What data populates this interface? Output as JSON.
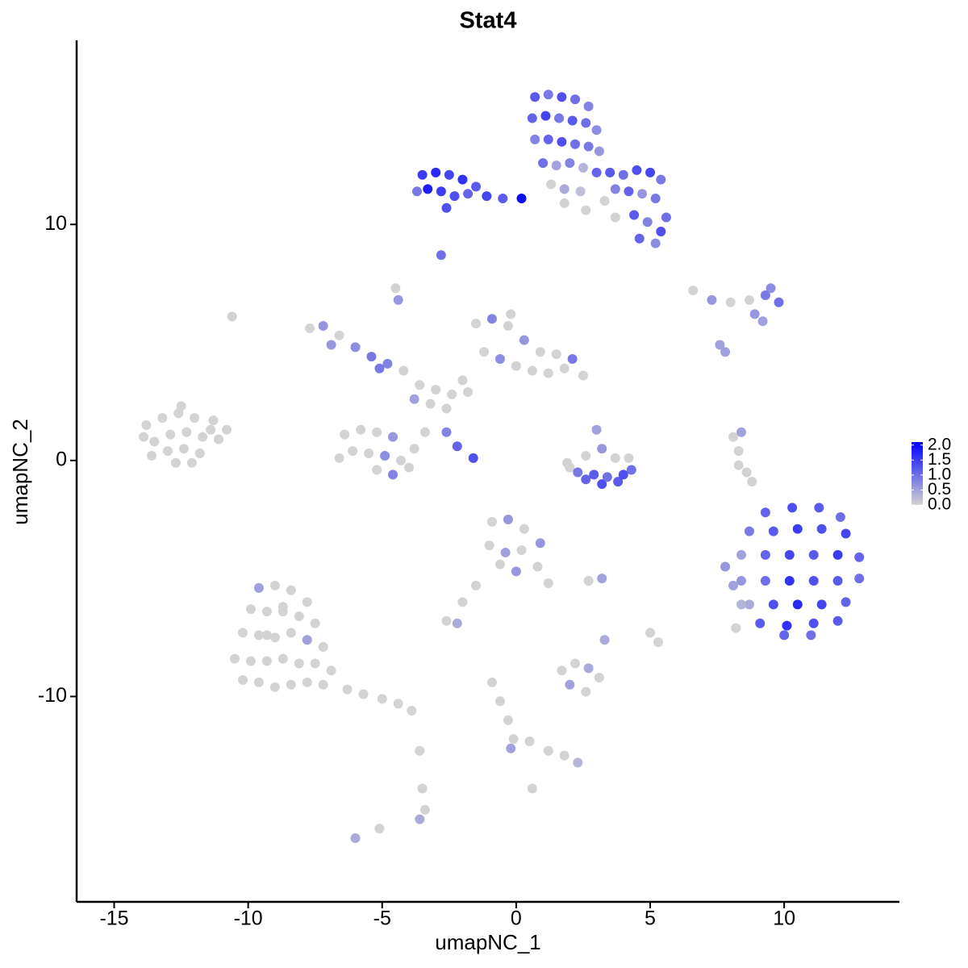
{
  "chart_data": {
    "type": "scatter",
    "title": "Stat4",
    "x_label": "umapNC_1",
    "y_label": "umapNC_2",
    "xlim": [
      -16.4,
      14.3
    ],
    "ylim": [
      -18.7,
      17.8
    ],
    "xticks": [
      -15,
      -10,
      -5,
      0,
      5,
      10
    ],
    "yticks": [
      -10,
      0,
      10
    ],
    "color_low": "#d3d3d3",
    "color_high": "#0000ff",
    "color_lim": [
      0,
      2.1
    ],
    "color_ticks": [
      {
        "value": 0,
        "label": "0.0"
      },
      {
        "value": 0.5,
        "label": "0.5"
      },
      {
        "value": 1,
        "label": "1.0"
      },
      {
        "value": 1.5,
        "label": "1.5"
      },
      {
        "value": 2,
        "label": "2.0"
      }
    ],
    "x": [
      -13.8,
      -13.2,
      -12.6,
      -12,
      -11.4,
      -13.5,
      -12.9,
      -12.3,
      -11.7,
      -11.1,
      -13.6,
      -13,
      -12.4,
      -11.8,
      -12.7,
      -12.1,
      -11.3,
      -10.8,
      -13.9,
      -12.5,
      -9.6,
      -9,
      -8.4,
      -7.8,
      -9.9,
      -9.3,
      -8.7,
      -8.1,
      -7.5,
      -10.2,
      -9.6,
      -9,
      -8.4,
      -7.8,
      -7.2,
      -10.5,
      -9.9,
      -9.3,
      -8.7,
      -8.1,
      -7.5,
      -6.9,
      -10.2,
      -9.6,
      -9,
      -8.4,
      -7.8,
      -7.2,
      -6.3,
      -5.7,
      -5,
      -4.4,
      -3.9,
      -3.6,
      -3.5,
      -3.4,
      -3.6,
      -8.7,
      -9.3,
      -6.4,
      -5.8,
      -5.2,
      -4.6,
      -6.1,
      -5.5,
      -4.9,
      -4.3,
      -3.8,
      -5.2,
      -4.6,
      -4,
      -6.6,
      -3.4,
      -7.7,
      -7.2,
      -6.6,
      -6,
      -5.4,
      -4.8,
      -4.2,
      -6.9,
      -5.1,
      -3.6,
      -3,
      -2.4,
      -3.2,
      -2.6,
      -2,
      -3.8,
      -1.8,
      -1.5,
      -0.9,
      -0.3,
      0.3,
      0.9,
      1.5,
      2.1,
      2.5,
      -1.2,
      -0.6,
      0,
      0.6,
      1.2,
      1.8,
      -0.2,
      -2.6,
      -2.2,
      -1.6,
      -4.5,
      -4.4,
      0.7,
      1.2,
      1.7,
      2.2,
      2.7,
      0.6,
      1.1,
      1.6,
      2.1,
      2.6,
      3,
      0.7,
      1.2,
      1.7,
      2.2,
      2.7,
      3.1,
      1,
      1.5,
      2,
      2.5,
      3,
      1.3,
      1.8,
      2.4,
      -3.5,
      -3,
      -2.5,
      -2,
      -1.5,
      -3.3,
      -2.8,
      -2.3,
      -1.8,
      -1.1,
      -0.5,
      0.2,
      -3.7,
      -2.6,
      3.5,
      4,
      4.5,
      5,
      5.4,
      3.7,
      4.2,
      4.7,
      5.2,
      5.6,
      4.4,
      4.9,
      5.4,
      4.6,
      5.2,
      1.8,
      2.6,
      3.3,
      3.7,
      -2.8,
      9.3,
      10.3,
      11.3,
      12.1,
      8.7,
      9.6,
      10.5,
      11.4,
      12.3,
      8.4,
      9.3,
      10.2,
      11.1,
      12,
      12.8,
      8.4,
      9.3,
      10.2,
      11.1,
      12,
      12.8,
      8.7,
      9.6,
      10.5,
      11.4,
      12.3,
      9.1,
      10.1,
      11.1,
      12,
      10,
      11,
      7.8,
      8.1,
      8.4,
      8.2,
      2,
      2.6,
      3.2,
      3.8,
      4.3,
      2.6,
      3.2,
      3.7,
      2.3,
      2.9,
      3.4,
      4,
      1.9,
      3,
      4.2,
      -0.9,
      -0.3,
      0.3,
      0.9,
      -1,
      -0.4,
      0.2,
      0.8,
      1.2,
      -0.6,
      0,
      -1.5,
      -2,
      -2.6,
      -2.2,
      2.7,
      3.2,
      1.7,
      2.2,
      2.7,
      3.1,
      2,
      2.6,
      -0.9,
      -0.6,
      -0.3,
      -0.1,
      0.5,
      1.2,
      1.8,
      2.3,
      -0.2,
      0.6,
      5,
      5.3,
      3.3,
      6.6,
      7.3,
      8,
      8.7,
      9.3,
      9.8,
      9.5,
      8.9,
      9.2,
      7.6,
      7.8,
      8.1,
      8.3,
      8.6,
      8.8,
      8.3,
      8.4,
      -10.6,
      -6,
      -5.1
    ],
    "y": [
      1.5,
      1.8,
      2,
      1.8,
      1.3,
      0.8,
      1.1,
      1.2,
      1,
      0.9,
      0.2,
      0.4,
      0.5,
      0.3,
      -0.1,
      -0.1,
      1.7,
      1.3,
      1,
      2.3,
      -5.4,
      -5.3,
      -5.5,
      -6,
      -6.3,
      -6.4,
      -6.4,
      -6.6,
      -6.9,
      -7.3,
      -7.4,
      -7.5,
      -7.3,
      -7.6,
      -7.9,
      -8.4,
      -8.5,
      -8.5,
      -8.4,
      -8.6,
      -8.6,
      -8.9,
      -9.3,
      -9.4,
      -9.6,
      -9.5,
      -9.4,
      -9.5,
      -9.7,
      -9.9,
      -10.1,
      -10.3,
      -10.6,
      -12.3,
      -13.9,
      -14.8,
      -15.2,
      -6.2,
      -7.4,
      1.1,
      1.3,
      1.2,
      1,
      0.4,
      0.3,
      0.2,
      0,
      0.5,
      -0.4,
      -0.6,
      -0.3,
      0.1,
      1.2,
      5.6,
      5.7,
      5.3,
      4.8,
      4.4,
      4.1,
      3.8,
      4.9,
      3.9,
      3.2,
      3,
      2.8,
      2.4,
      2.2,
      3.4,
      2.6,
      2.9,
      5.8,
      6,
      5.7,
      5.1,
      4.6,
      4.5,
      4.3,
      3.6,
      4.6,
      4.3,
      4,
      3.8,
      3.7,
      3.9,
      6.2,
      1.2,
      0.6,
      0.1,
      7.3,
      6.8,
      15.4,
      15.5,
      15.4,
      15.3,
      15,
      14.5,
      14.6,
      14.5,
      14.4,
      14.3,
      14,
      13.6,
      13.6,
      13.5,
      13.4,
      13.3,
      13.1,
      12.6,
      12.5,
      12.6,
      12.4,
      12.2,
      11.7,
      11.5,
      11.4,
      12.1,
      12.2,
      12.1,
      11.9,
      11.6,
      11.5,
      11.4,
      11.2,
      11.3,
      11.2,
      11.1,
      11.1,
      11.4,
      10.7,
      12.2,
      12.1,
      12.3,
      12.2,
      11.9,
      11.5,
      11.4,
      11.3,
      11.1,
      10.3,
      10.4,
      10.1,
      9.7,
      9.4,
      9.2,
      10.9,
      10.6,
      11,
      10.3,
      8.7,
      -2.2,
      -2,
      -2,
      -2.4,
      -3,
      -3,
      -2.9,
      -2.9,
      -3.1,
      -4,
      -4,
      -4,
      -4,
      -4,
      -4.1,
      -5.1,
      -5.1,
      -5.1,
      -5.1,
      -5.1,
      -5,
      -6.1,
      -6.1,
      -6.1,
      -6.1,
      -6,
      -6.9,
      -7,
      -6.9,
      -6.8,
      -7.4,
      -7.4,
      -4.5,
      -5.3,
      -6.1,
      -7.1,
      -0.3,
      -0.8,
      -1,
      -0.9,
      -0.4,
      0.2,
      0.5,
      0.1,
      -0.5,
      -0.6,
      -0.7,
      -0.6,
      -0.1,
      1.3,
      0.1,
      -2.6,
      -2.5,
      -2.9,
      -3.5,
      -3.6,
      -3.9,
      -3.8,
      -4.5,
      -5.2,
      -4.4,
      -4.7,
      -5.3,
      -6,
      -6.8,
      -6.9,
      -5.1,
      -5,
      -8.9,
      -8.6,
      -8.8,
      -9.2,
      -9.5,
      -9.8,
      -9.4,
      -10.2,
      -11,
      -11.8,
      -11.9,
      -12.3,
      -12.5,
      -12.8,
      -12.2,
      -13.9,
      -7.3,
      -7.7,
      -7.6,
      7.2,
      6.8,
      6.7,
      6.8,
      7,
      6.7,
      7.3,
      6.2,
      5.9,
      4.9,
      4.6,
      1,
      0.4,
      -0.5,
      -0.9,
      -0.2,
      1.2,
      6.1,
      -16,
      -15.6
    ],
    "values": [
      0,
      0,
      0,
      0,
      0,
      0,
      0,
      0,
      0,
      0,
      0,
      0,
      0,
      0,
      0,
      0,
      0,
      0,
      0,
      0,
      0.5,
      0,
      0,
      0,
      0,
      0,
      0,
      0,
      0,
      0,
      0,
      0,
      0,
      0.5,
      0,
      0,
      0,
      0,
      0,
      0,
      0,
      0,
      0,
      0,
      0,
      0,
      0,
      0,
      0,
      0,
      0,
      0,
      0,
      0,
      0,
      0,
      0.4,
      0,
      0,
      0,
      0,
      0,
      0.6,
      0,
      0,
      0.7,
      0,
      0,
      0,
      0.8,
      0,
      0,
      0,
      0,
      0.6,
      0,
      0.7,
      0.9,
      0.8,
      0,
      0.6,
      0.9,
      0,
      0,
      0,
      0,
      0,
      0,
      0.5,
      0,
      0,
      0.8,
      0,
      0.6,
      0,
      0,
      0.9,
      0,
      0,
      0.7,
      0,
      0,
      0,
      0,
      0,
      0.8,
      1.1,
      1.3,
      0,
      0.6,
      1.2,
      0.9,
      1.3,
      1,
      0.8,
      1.1,
      1.4,
      0.9,
      1.2,
      1,
      0.7,
      0.8,
      1.1,
      1.3,
      1,
      0.9,
      0.6,
      1,
      0.5,
      0.8,
      0.3,
      1.1,
      0,
      0.4,
      0.2,
      1.5,
      1.7,
      1.4,
      1.6,
      1.2,
      1.8,
      1.5,
      1.3,
      1.1,
      1.4,
      1.2,
      2,
      0.9,
      1.3,
      1.2,
      1,
      1.3,
      1.4,
      0.9,
      0.8,
      1.1,
      0.6,
      0.9,
      1,
      1.2,
      0.8,
      1.3,
      1.1,
      0.7,
      0,
      0,
      0,
      0,
      1,
      1.1,
      1.3,
      1.2,
      1,
      0.9,
      1.2,
      1.5,
      1.3,
      1.4,
      0.5,
      1.1,
      1.4,
      1.2,
      1.5,
      1.1,
      0.6,
      1,
      1.6,
      1.3,
      1.2,
      1,
      0.4,
      1.3,
      1.7,
      1.4,
      1.1,
      1.2,
      1.6,
      1.3,
      1.2,
      1.1,
      1,
      0.6,
      0.5,
      0.3,
      0,
      0,
      1.1,
      1.3,
      1.2,
      1,
      0,
      0.6,
      0,
      0.9,
      1.2,
      1,
      1.3,
      0,
      0.5,
      0,
      0,
      0.6,
      0,
      0.6,
      0,
      0.5,
      0,
      0,
      0,
      0,
      0.6,
      0,
      0,
      0,
      0.4,
      0,
      0.5,
      0,
      0,
      0.4,
      0,
      0.5,
      0,
      0,
      0,
      0,
      0,
      0,
      0,
      0,
      0.3,
      0.5,
      0,
      0,
      0,
      0.4,
      0,
      0.6,
      0,
      0,
      0.9,
      1,
      0.7,
      0.6,
      0.5,
      0.5,
      0.5,
      0,
      0,
      0,
      0,
      0,
      0.5,
      0,
      0.4,
      0
    ]
  }
}
